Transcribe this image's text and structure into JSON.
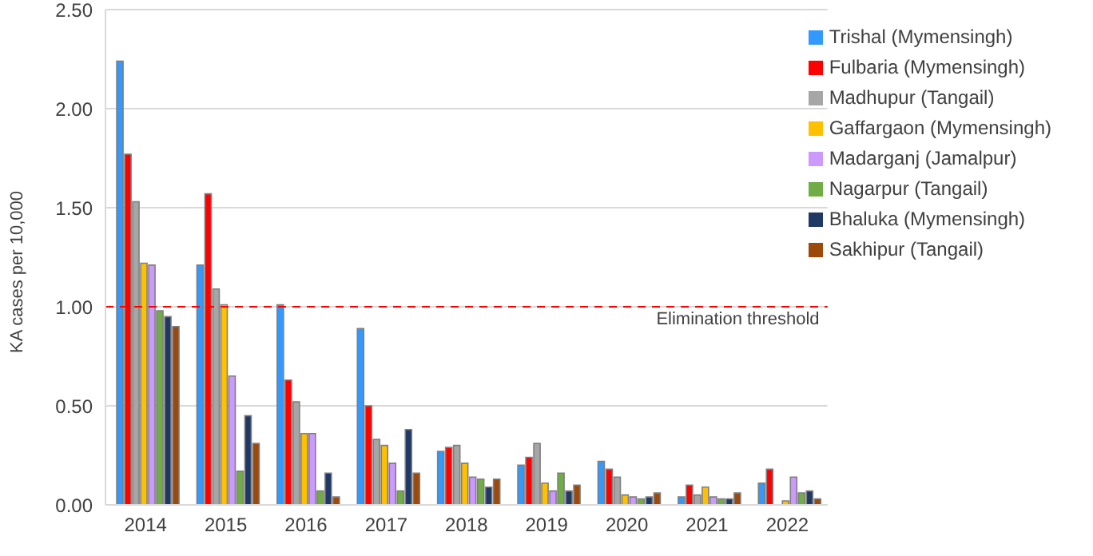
{
  "chart_data": {
    "type": "bar",
    "ylabel": "KA cases per 10,000",
    "categories": [
      "2014",
      "2015",
      "2016",
      "2017",
      "2018",
      "2019",
      "2020",
      "2021",
      "2022"
    ],
    "series": [
      {
        "name": "Trishal (Mymensingh)",
        "color": "#3399ff",
        "values": [
          2.24,
          1.21,
          1.01,
          0.89,
          0.27,
          0.2,
          0.22,
          0.04,
          0.11
        ]
      },
      {
        "name": "Fulbaria (Mymensingh)",
        "color": "#ff0000",
        "values": [
          1.77,
          1.57,
          0.63,
          0.5,
          0.29,
          0.24,
          0.18,
          0.1,
          0.18
        ]
      },
      {
        "name": "Madhupur (Tangail)",
        "color": "#a6a6a6",
        "values": [
          1.53,
          1.09,
          0.52,
          0.33,
          0.3,
          0.31,
          0.14,
          0.05,
          null
        ]
      },
      {
        "name": "Gaffargaon (Mymensingh)",
        "color": "#ffc000",
        "values": [
          1.22,
          1.01,
          0.36,
          0.3,
          0.21,
          0.11,
          0.05,
          0.09,
          0.02
        ]
      },
      {
        "name": "Madarganj (Jamalpur)",
        "color": "#cc99ff",
        "values": [
          1.21,
          0.65,
          0.36,
          0.21,
          0.14,
          0.07,
          0.04,
          0.04,
          0.14
        ]
      },
      {
        "name": "Nagarpur (Tangail)",
        "color": "#70ad47",
        "values": [
          0.98,
          0.17,
          0.07,
          0.07,
          0.13,
          0.16,
          0.03,
          0.03,
          0.06
        ]
      },
      {
        "name": "Bhaluka (Mymensingh)",
        "color": "#1f3864",
        "values": [
          0.95,
          0.45,
          0.16,
          0.38,
          0.09,
          0.07,
          0.04,
          0.03,
          0.07
        ]
      },
      {
        "name": "Sakhipur (Tangail)",
        "color": "#9c4a0c",
        "values": [
          0.9,
          0.31,
          0.04,
          0.16,
          0.13,
          0.1,
          0.06,
          0.06,
          0.03
        ]
      }
    ],
    "ylim": [
      0,
      2.5
    ],
    "yticks": [
      {
        "value": 0,
        "label": "0.00"
      },
      {
        "value": 0.5,
        "label": "0.50"
      },
      {
        "value": 1,
        "label": "1.00"
      },
      {
        "value": 1.5,
        "label": "1.50"
      },
      {
        "value": 2,
        "label": "2.00"
      },
      {
        "value": 2.5,
        "label": "2.50"
      }
    ],
    "grid": "y",
    "legend": "top right",
    "ref_lines": [
      {
        "axis": "y",
        "value": 1,
        "label": "Elimination threshold",
        "color": "#ff0000",
        "line_style": "dashed"
      }
    ]
  }
}
